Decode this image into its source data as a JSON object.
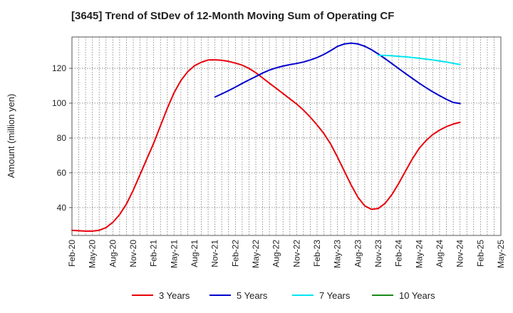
{
  "chart_data": {
    "type": "line",
    "title": "[3645]  Trend of StDev of 12-Month Moving Sum of Operating CF",
    "ylabel": "Amount (million yen)",
    "xlabel": "",
    "ylim": [
      24,
      138
    ],
    "yticks": [
      40,
      60,
      80,
      100,
      120
    ],
    "x_start": "Feb-20",
    "x_end": "May-25",
    "xticks": [
      "Feb-20",
      "May-20",
      "Aug-20",
      "Nov-20",
      "Feb-21",
      "May-21",
      "Aug-21",
      "Nov-21",
      "Feb-22",
      "May-22",
      "Aug-22",
      "Nov-22",
      "Feb-23",
      "May-23",
      "Aug-23",
      "Nov-23",
      "Feb-24",
      "May-24",
      "Aug-24",
      "Nov-24",
      "Feb-25",
      "May-25"
    ],
    "grid": true,
    "legend_position": "bottom",
    "series": [
      {
        "name": "3 Years",
        "color": "#e8000b",
        "points": [
          [
            "Feb-20",
            27
          ],
          [
            "Mar-20",
            26.7
          ],
          [
            "Apr-20",
            26.5
          ],
          [
            "May-20",
            26.5
          ],
          [
            "Jun-20",
            27
          ],
          [
            "Jul-20",
            28.5
          ],
          [
            "Aug-20",
            31.5
          ],
          [
            "Sep-20",
            36
          ],
          [
            "Oct-20",
            42
          ],
          [
            "Nov-20",
            50
          ],
          [
            "Dec-20",
            59
          ],
          [
            "Jan-21",
            68
          ],
          [
            "Feb-21",
            77
          ],
          [
            "Mar-21",
            87
          ],
          [
            "Apr-21",
            97
          ],
          [
            "May-21",
            106
          ],
          [
            "Jun-21",
            113
          ],
          [
            "Jul-21",
            118
          ],
          [
            "Aug-21",
            121.5
          ],
          [
            "Sep-21",
            123.5
          ],
          [
            "Oct-21",
            124.8
          ],
          [
            "Nov-21",
            124.9
          ],
          [
            "Dec-21",
            124.6
          ],
          [
            "Jan-22",
            124
          ],
          [
            "Feb-22",
            123
          ],
          [
            "Mar-22",
            121.8
          ],
          [
            "Apr-22",
            120
          ],
          [
            "May-22",
            117.5
          ],
          [
            "Jun-22",
            114.5
          ],
          [
            "Jul-22",
            111.5
          ],
          [
            "Aug-22",
            108.5
          ],
          [
            "Sep-22",
            105.5
          ],
          [
            "Oct-22",
            102.5
          ],
          [
            "Nov-22",
            99.5
          ],
          [
            "Dec-22",
            96
          ],
          [
            "Jan-23",
            92
          ],
          [
            "Feb-23",
            87.5
          ],
          [
            "Mar-23",
            82.5
          ],
          [
            "Apr-23",
            76.5
          ],
          [
            "May-23",
            69
          ],
          [
            "Jun-23",
            61
          ],
          [
            "Jul-23",
            53
          ],
          [
            "Aug-23",
            46
          ],
          [
            "Sep-23",
            41
          ],
          [
            "Oct-23",
            39
          ],
          [
            "Nov-23",
            39.5
          ],
          [
            "Dec-23",
            42.5
          ],
          [
            "Jan-24",
            47.5
          ],
          [
            "Feb-24",
            54
          ],
          [
            "Mar-24",
            61
          ],
          [
            "Apr-24",
            68
          ],
          [
            "May-24",
            74
          ],
          [
            "Jun-24",
            78.5
          ],
          [
            "Jul-24",
            82
          ],
          [
            "Aug-24",
            84.5
          ],
          [
            "Sep-24",
            86.5
          ],
          [
            "Oct-24",
            88
          ],
          [
            "Nov-24",
            89
          ]
        ]
      },
      {
        "name": "5 Years",
        "color": "#0000cc",
        "points": [
          [
            "Nov-21",
            103.5
          ],
          [
            "Dec-21",
            105.3
          ],
          [
            "Jan-22",
            107.2
          ],
          [
            "Feb-22",
            109.2
          ],
          [
            "Mar-22",
            111.3
          ],
          [
            "Apr-22",
            113.3
          ],
          [
            "May-22",
            115.3
          ],
          [
            "Jun-22",
            117.3
          ],
          [
            "Jul-22",
            119
          ],
          [
            "Aug-22",
            120.3
          ],
          [
            "Sep-22",
            121.3
          ],
          [
            "Oct-22",
            122.1
          ],
          [
            "Nov-22",
            122.8
          ],
          [
            "Dec-22",
            123.6
          ],
          [
            "Jan-23",
            124.8
          ],
          [
            "Feb-23",
            126.2
          ],
          [
            "Mar-23",
            128
          ],
          [
            "Apr-23",
            130.2
          ],
          [
            "May-23",
            132.6
          ],
          [
            "Jun-23",
            134
          ],
          [
            "Jul-23",
            134.5
          ],
          [
            "Aug-23",
            134
          ],
          [
            "Sep-23",
            132.7
          ],
          [
            "Oct-23",
            130.7
          ],
          [
            "Nov-23",
            128.2
          ],
          [
            "Dec-23",
            125.5
          ],
          [
            "Jan-24",
            122.7
          ],
          [
            "Feb-24",
            119.8
          ],
          [
            "Mar-24",
            117
          ],
          [
            "Apr-24",
            114.2
          ],
          [
            "May-24",
            111.5
          ],
          [
            "Jun-24",
            108.9
          ],
          [
            "Jul-24",
            106.5
          ],
          [
            "Aug-24",
            104.3
          ],
          [
            "Sep-24",
            102.2
          ],
          [
            "Oct-24",
            100.4
          ],
          [
            "Nov-24",
            99.8
          ]
        ]
      },
      {
        "name": "7 Years",
        "color": "#00e5ee",
        "points": [
          [
            "Nov-23",
            127.5
          ],
          [
            "Dec-23",
            127.4
          ],
          [
            "Jan-24",
            127.2
          ],
          [
            "Feb-24",
            126.9
          ],
          [
            "Mar-24",
            126.6
          ],
          [
            "Apr-24",
            126.2
          ],
          [
            "May-24",
            125.8
          ],
          [
            "Jun-24",
            125.3
          ],
          [
            "Jul-24",
            124.8
          ],
          [
            "Aug-24",
            124.2
          ],
          [
            "Sep-24",
            123.6
          ],
          [
            "Oct-24",
            122.9
          ],
          [
            "Nov-24",
            122.2
          ]
        ]
      },
      {
        "name": "10 Years",
        "color": "#1a8a1a",
        "points": []
      }
    ]
  }
}
